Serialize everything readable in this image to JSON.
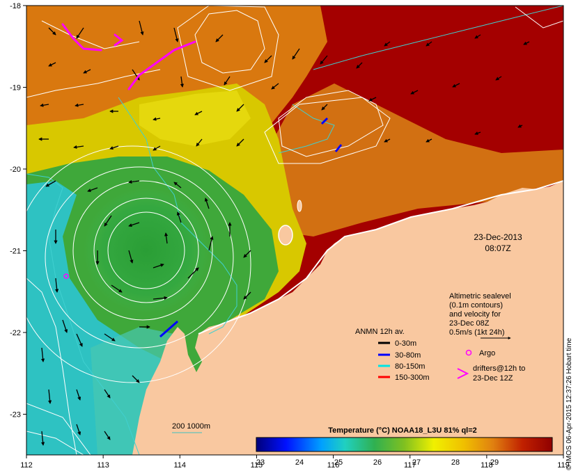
{
  "map": {
    "longitude_ticks": [
      "112",
      "113",
      "114",
      "115",
      "116",
      "117",
      "118",
      "119"
    ],
    "latitude_ticks": [
      "-18",
      "-19",
      "-20",
      "-21",
      "-22",
      "-23"
    ],
    "extent": {
      "lon": [
        112,
        119
      ],
      "lat": [
        -23.55,
        -18
      ]
    }
  },
  "timestamp": {
    "date": "23-Dec-2013",
    "time": "08:07Z"
  },
  "altimetry_note": {
    "lines": [
      "Altimetric sealevel",
      "(0.1m contours)",
      "and velocity for",
      "23-Dec 08Z",
      "0.5m/s (1kt 24h)"
    ]
  },
  "anmn_legend": {
    "title": "ANMN 12h av.",
    "items": [
      {
        "label": "0-30m",
        "color": "#000000"
      },
      {
        "label": "30-80m",
        "color": "#0000ff"
      },
      {
        "label": "80-150m",
        "color": "#00e5e5"
      },
      {
        "label": "150-300m",
        "color": "#ff0000"
      }
    ]
  },
  "argo_legend": {
    "label": "Argo",
    "color": "#ff00ff"
  },
  "drifters_legend": {
    "lines": [
      "drifters@12h to",
      "23-Dec 12Z"
    ],
    "color": "#ff00ff"
  },
  "isobath_legend": {
    "label": "200  1000m",
    "color": "#40c0c0"
  },
  "colorbar": {
    "title": "Temperature (°C) NOAA18_L3U 81% ql=2",
    "ticks": [
      "23",
      "24",
      "25",
      "26",
      "27",
      "28",
      "29"
    ]
  },
  "credit": "© IMOS 06-Apr-2015 12:37:26 Hobart time",
  "colors": {
    "land": "#f9c8a0",
    "warm": "#a40000",
    "orange": "#d9780f",
    "yellow": "#d8c800",
    "green": "#3fa83a",
    "cyan": "#2ec2c2",
    "drifter": "#ff00ff",
    "contour": "#ffffff",
    "isobath": "#40d0d0"
  }
}
